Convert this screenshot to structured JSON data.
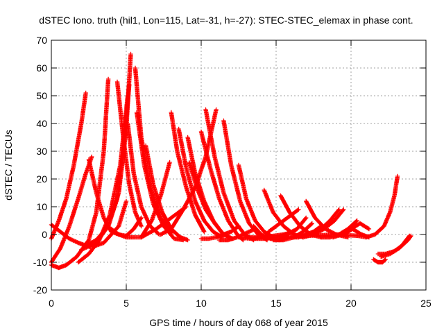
{
  "chart_data": {
    "type": "scatter",
    "title": "dSTEC Iono. truth (hil1, Lon=115, Lat=-31, h=-27): STEC-STEC_elemax in phase cont.",
    "xlabel": "GPS time / hours of day 068 of year 2015",
    "ylabel": "dSTEC  / TECUs",
    "xlim": [
      0,
      25
    ],
    "ylim": [
      -20,
      70
    ],
    "x_ticks": [
      "0",
      "5",
      "10",
      "15",
      "20",
      "25"
    ],
    "y_ticks": [
      "-20",
      "-10",
      "0",
      "10",
      "20",
      "30",
      "40",
      "50",
      "60",
      "70"
    ],
    "grid": true,
    "legend": "none",
    "marker": "plus",
    "color": "#ff0000",
    "series": [
      {
        "x": [
          0.0,
          0.5,
          1.0,
          1.5,
          2.0,
          2.3
        ],
        "y": [
          -1.5,
          5,
          13,
          25,
          40,
          51
        ]
      },
      {
        "x": [
          0.0,
          0.6,
          1.2,
          1.8,
          2.3,
          2.6
        ],
        "y": [
          3.5,
          1,
          -1.5,
          -3,
          -4,
          -4.5
        ]
      },
      {
        "x": [
          0.0,
          0.6,
          1.2,
          1.8,
          2.3,
          2.7
        ],
        "y": [
          -10,
          -5,
          3,
          13,
          22,
          28
        ]
      },
      {
        "x": [
          2.5,
          3.0,
          3.5,
          4.0
        ],
        "y": [
          27,
          15,
          6,
          1
        ]
      },
      {
        "x": [
          0.0,
          0.5,
          1.0,
          1.7,
          2.5,
          3.0,
          3.5,
          3.8
        ],
        "y": [
          -11,
          -12,
          -11,
          -8,
          -2,
          8,
          30,
          56
        ]
      },
      {
        "x": [
          2.7,
          3.5,
          4.5,
          5.0
        ],
        "y": [
          -4.5,
          -3,
          3,
          12
        ]
      },
      {
        "x": [
          1.8,
          2.5,
          3.2,
          3.9,
          4.6,
          5.1
        ],
        "y": [
          -10,
          -7,
          -2,
          7,
          25,
          50
        ]
      },
      {
        "x": [
          2.3,
          3.0,
          3.8,
          4.4,
          4.8,
          5.2
        ],
        "y": [
          -4,
          -2,
          3,
          13,
          30,
          54
        ]
      },
      {
        "x": [
          2.0,
          3.0,
          3.8,
          4.5,
          5.0,
          5.3
        ],
        "y": [
          -5.5,
          -3,
          3,
          15,
          38,
          65
        ]
      },
      {
        "x": [
          4.4,
          4.8,
          5.2,
          5.6,
          6.0
        ],
        "y": [
          55,
          35,
          18,
          8,
          3
        ]
      },
      {
        "x": [
          5.1,
          5.5,
          6.0,
          6.6,
          7.2
        ],
        "y": [
          40,
          22,
          10,
          3,
          0
        ]
      },
      {
        "x": [
          4.0,
          4.5,
          5.0,
          5.5,
          6.0
        ],
        "y": [
          2,
          0,
          -0.5,
          2,
          6
        ]
      },
      {
        "x": [
          5.6,
          6.0,
          6.6,
          7.3,
          8.0
        ],
        "y": [
          60,
          35,
          17,
          6,
          0.5
        ]
      },
      {
        "x": [
          5.7,
          6.2,
          6.8,
          7.5,
          8.2,
          8.8
        ],
        "y": [
          44,
          25,
          11,
          3,
          -1.5,
          -2
        ]
      },
      {
        "x": [
          6.3,
          6.8,
          7.4,
          8.0,
          8.6,
          9.1
        ],
        "y": [
          32,
          18,
          8,
          2,
          -1,
          -2
        ]
      },
      {
        "x": [
          6.0,
          6.7,
          7.3,
          7.9
        ],
        "y": [
          -1,
          5,
          14,
          26
        ]
      },
      {
        "x": [
          4.0,
          5.0,
          6.0,
          7.0,
          8.0,
          9.0
        ],
        "y": [
          1,
          -1,
          -1,
          2,
          6,
          10
        ]
      },
      {
        "x": [
          8.0,
          8.4,
          9.0,
          9.6,
          10.2
        ],
        "y": [
          44,
          30,
          17,
          7,
          1
        ]
      },
      {
        "x": [
          7.3,
          8.0,
          8.8,
          9.6,
          10.3,
          11.0
        ],
        "y": [
          0,
          2,
          9,
          17,
          28,
          45
        ]
      },
      {
        "x": [
          8.5,
          9.0,
          9.6,
          10.2,
          10.8,
          11.4
        ],
        "y": [
          38,
          24,
          12,
          5,
          1,
          -1
        ]
      },
      {
        "x": [
          9.1,
          9.6,
          10.2,
          10.8,
          11.4,
          12.0
        ],
        "y": [
          35,
          22,
          12,
          5,
          0.5,
          -1.5
        ]
      },
      {
        "x": [
          9.2,
          9.7,
          10.3,
          10.9,
          11.5,
          12.1
        ],
        "y": [
          26,
          17,
          9,
          4,
          0,
          -1.5
        ]
      },
      {
        "x": [
          10.0,
          10.6,
          11.2,
          11.8,
          12.4,
          12.8
        ],
        "y": [
          37,
          24,
          13,
          5,
          0,
          -2
        ]
      },
      {
        "x": [
          10.3,
          10.9,
          11.5,
          12.2,
          12.9,
          13.5
        ],
        "y": [
          45,
          28,
          15,
          5,
          0,
          -2
        ]
      },
      {
        "x": [
          11.5,
          12.0,
          12.6,
          13.2,
          13.8,
          14.4
        ],
        "y": [
          41,
          25,
          12,
          4,
          0,
          -2
        ]
      },
      {
        "x": [
          10.0,
          10.5,
          11.0,
          11.5,
          12.0,
          12.5
        ],
        "y": [
          -1.5,
          -1.5,
          -1,
          0,
          1,
          3
        ]
      },
      {
        "x": [
          11.2,
          11.8,
          12.4,
          13.0,
          13.6
        ],
        "y": [
          -2,
          -2,
          -1,
          0.5,
          2
        ]
      },
      {
        "x": [
          12.5,
          13.0,
          13.6,
          14.2,
          14.8
        ],
        "y": [
          25,
          13,
          5,
          1,
          -1
        ]
      },
      {
        "x": [
          12.5,
          13.3,
          14.0,
          14.8,
          15.5,
          16.2
        ],
        "y": [
          -1,
          -1.5,
          -1,
          -0.5,
          0,
          1
        ]
      },
      {
        "x": [
          13.5,
          14.0,
          14.6,
          15.2,
          15.8
        ],
        "y": [
          3,
          0,
          -1.5,
          -2,
          -1
        ]
      },
      {
        "x": [
          14.2,
          14.8,
          15.5,
          16.2,
          16.8
        ],
        "y": [
          16,
          8,
          3,
          0,
          -1
        ]
      },
      {
        "x": [
          15.3,
          15.9,
          16.6,
          17.3,
          18.0
        ],
        "y": [
          14,
          8,
          3,
          0,
          -1
        ]
      },
      {
        "x": [
          13.5,
          14.2,
          15.0,
          15.7,
          16.4,
          17.0
        ],
        "y": [
          -1.5,
          -1.5,
          -1,
          0,
          2,
          6
        ]
      },
      {
        "x": [
          14.5,
          15.0,
          15.5,
          16.0,
          16.5
        ],
        "y": [
          1,
          3,
          5,
          7,
          9
        ]
      },
      {
        "x": [
          14.8,
          15.5,
          16.2,
          16.8,
          17.4
        ],
        "y": [
          -2,
          -2,
          -1,
          1,
          4
        ]
      },
      {
        "x": [
          16.0,
          16.5,
          17.0,
          17.5,
          18.0
        ],
        "y": [
          -1,
          -1,
          0,
          1,
          3
        ]
      },
      {
        "x": [
          17.0,
          17.6,
          18.3,
          19.0,
          19.8
        ],
        "y": [
          12,
          6,
          2,
          0,
          -1
        ]
      },
      {
        "x": [
          16.8,
          17.5,
          18.2,
          18.9,
          19.5
        ],
        "y": [
          -1,
          0,
          2,
          5,
          9
        ]
      },
      {
        "x": [
          17.5,
          18.0,
          18.6,
          19.2
        ],
        "y": [
          0,
          2,
          5,
          9
        ]
      },
      {
        "x": [
          18.0,
          18.6,
          19.2,
          19.8,
          20.4
        ],
        "y": [
          -1,
          -1,
          0,
          2,
          5
        ]
      },
      {
        "x": [
          18.8,
          19.4,
          20.0,
          20.6,
          21.2
        ],
        "y": [
          -1,
          0,
          2,
          4,
          2
        ]
      },
      {
        "x": [
          19.5,
          20.1,
          20.7,
          21.2
        ],
        "y": [
          0,
          2,
          0,
          -1
        ]
      },
      {
        "x": [
          13.0,
          15.0,
          17.0,
          19.0,
          20.5,
          21.0
        ],
        "y": [
          -1,
          -1,
          -0.5,
          0,
          -0.5,
          -1
        ]
      },
      {
        "x": [
          21.0,
          21.6,
          22.2,
          22.6,
          22.9,
          23.1
        ],
        "y": [
          -1,
          0,
          3,
          8,
          14,
          21
        ]
      },
      {
        "x": [
          21.5,
          21.8,
          22.1,
          22.3
        ],
        "y": [
          -9,
          -10,
          -10,
          -9
        ]
      },
      {
        "x": [
          21.8,
          22.3,
          22.9,
          23.4,
          23.9
        ],
        "y": [
          -7,
          -7,
          -6,
          -4,
          -0.5
        ]
      },
      {
        "x": [
          22.0,
          22.6,
          23.2,
          23.8,
          24.0
        ],
        "y": [
          -8,
          -7,
          -5,
          -2,
          -0.5
        ]
      }
    ]
  }
}
